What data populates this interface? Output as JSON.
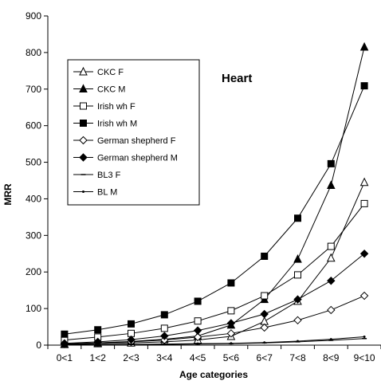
{
  "chart_data": {
    "type": "line",
    "title": "",
    "annotation": "Heart",
    "xlabel": "Age categories",
    "ylabel": "MRR",
    "categories": [
      "0<1",
      "1<2",
      "2<3",
      "3<4",
      "4<5",
      "5<6",
      "6<7",
      "7<8",
      "8<9",
      "9<10"
    ],
    "ylim": [
      0,
      900
    ],
    "yticks": [
      0,
      100,
      200,
      300,
      400,
      500,
      600,
      700,
      800,
      900
    ],
    "grid": false,
    "legend_position": "top-left",
    "series": [
      {
        "name": "CKC F",
        "marker": "triangle-open",
        "values": [
          2,
          4,
          6,
          9,
          14,
          24,
          65,
          120,
          238,
          445
        ]
      },
      {
        "name": "CKC M",
        "marker": "triangle-filled",
        "values": [
          3,
          6,
          10,
          16,
          25,
          55,
          125,
          235,
          437,
          815
        ]
      },
      {
        "name": "Irish wh F",
        "marker": "square-open",
        "values": [
          14,
          22,
          32,
          46,
          66,
          94,
          135,
          192,
          270,
          387
        ]
      },
      {
        "name": "Irish wh M",
        "marker": "square-filled",
        "values": [
          30,
          42,
          58,
          83,
          120,
          170,
          243,
          347,
          496,
          709
        ]
      },
      {
        "name": "German shepherd F",
        "marker": "diamond-open",
        "values": [
          3,
          6,
          9,
          14,
          22,
          32,
          48,
          68,
          96,
          135
        ]
      },
      {
        "name": "German shepherd M",
        "marker": "diamond-filled",
        "values": [
          5,
          9,
          15,
          25,
          40,
          60,
          85,
          125,
          176,
          250
        ]
      },
      {
        "name": "BL3 F",
        "marker": "dash",
        "values": [
          1,
          1,
          2,
          2,
          3,
          4,
          6,
          9,
          13,
          18
        ]
      },
      {
        "name": "BL M",
        "marker": "dot",
        "values": [
          1,
          1,
          2,
          3,
          4,
          5,
          7,
          11,
          16,
          23
        ]
      }
    ]
  }
}
